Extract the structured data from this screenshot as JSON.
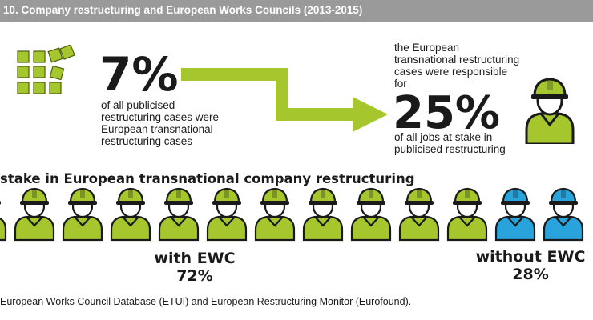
{
  "header": {
    "title": "10.   Company restructuring and European Works Councils (2013-2015)"
  },
  "left_stat": {
    "value": "7%",
    "description_lines": [
      "of all publicised",
      "restructuring cases were",
      "European transnational",
      "restructuring cases"
    ]
  },
  "right_stat": {
    "intro_lines": [
      "the European",
      "transnational restructuring",
      "cases were responsible",
      "for"
    ],
    "value": "25%",
    "description_lines": [
      "of all jobs at stake in",
      "publicised restructuring"
    ]
  },
  "section_title": "stake in European transnational company restructuring",
  "groups": {
    "with_ewc": {
      "label": "with EWC",
      "percent": "72%",
      "share": 0.72
    },
    "without_ewc": {
      "label": "without EWC",
      "percent": "28%",
      "share": 0.28
    }
  },
  "colors": {
    "green": "#a5c62c",
    "blue": "#29a3dc",
    "dark": "#1a1a1a",
    "header_bg": "#9a9a9a"
  },
  "icons": {
    "squares": "stacked-squares-icon",
    "worker": "worker-helmet-icon",
    "arrow": "arrow-icon"
  },
  "source": "European Works Council Database (ETUI) and European Restructuring Monitor (Eurofound)."
}
